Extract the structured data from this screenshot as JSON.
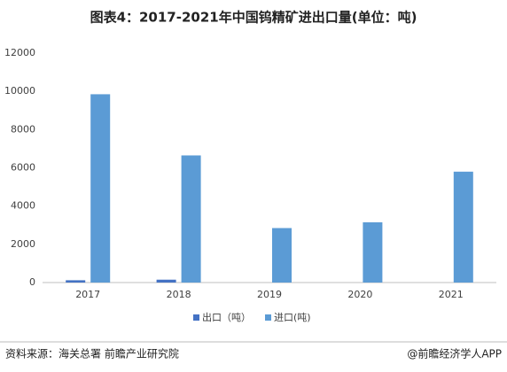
{
  "chart_data": {
    "type": "bar",
    "title": "图表4：2017-2021年中国钨精矿进出口量(单位：吨)",
    "categories": [
      "2017",
      "2018",
      "2019",
      "2020",
      "2021"
    ],
    "series": [
      {
        "name": "出口（吨）",
        "color": "#4472c4",
        "values": [
          120,
          150,
          0,
          0,
          0
        ]
      },
      {
        "name": "进口(吨)",
        "color": "#5b9bd5",
        "values": [
          9850,
          6650,
          2850,
          3150,
          5800
        ]
      }
    ],
    "ylim": [
      0,
      12000
    ],
    "yticks": [
      0,
      2000,
      4000,
      6000,
      8000,
      10000,
      12000
    ],
    "grid": false,
    "source": "资料来源：海关总署 前瞻产业研究院",
    "brand": "@前瞻经济学人APP"
  }
}
